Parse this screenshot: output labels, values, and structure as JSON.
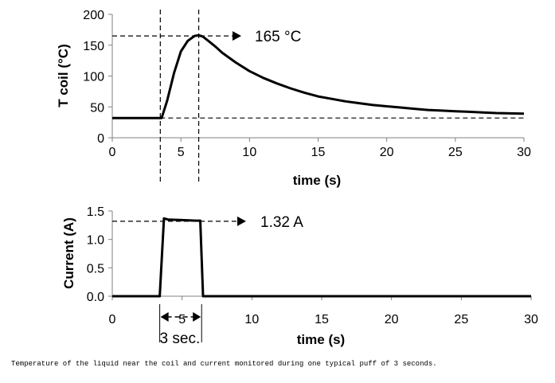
{
  "caption": "Temperature of the liquid near the coil and current monitored during one typical puff of 3 seconds.",
  "chart_data": [
    {
      "type": "line",
      "xlabel": "time (s)",
      "ylabel": "T coil (°C)",
      "xlim": [
        0,
        30
      ],
      "ylim": [
        0,
        200
      ],
      "xticks": [
        "0",
        "5",
        "10",
        "15",
        "20",
        "25",
        "30"
      ],
      "yticks": [
        "0",
        "50",
        "100",
        "150",
        "200"
      ],
      "grid": false,
      "series": [
        {
          "x": [
            0,
            3.6,
            4.0,
            4.5,
            5.0,
            5.5,
            6.0,
            6.3,
            6.6,
            7.0,
            7.5,
            8.0,
            9.0,
            10.0,
            11.0,
            12.0,
            13.0,
            14.0,
            15.0,
            16.0,
            17.0,
            18.0,
            19.0,
            20.0,
            21.0,
            22.0,
            23.0,
            24.0,
            25.0,
            26.0,
            27.0,
            28.0,
            29.0,
            30.0
          ],
          "y": [
            32,
            32,
            60,
            105,
            140,
            157,
            165,
            166,
            164,
            157,
            148,
            138,
            122,
            108,
            97,
            88,
            80,
            73,
            67,
            63,
            59,
            56,
            53,
            51,
            49,
            47,
            45,
            44,
            43,
            42,
            41,
            40,
            39.5,
            39
          ]
        }
      ],
      "annotations": {
        "peak_label": "165 °C",
        "peak_value": 165,
        "baseline_value": 32,
        "vline_x": [
          3.5,
          6.3
        ]
      }
    },
    {
      "type": "line",
      "xlabel": "time (s)",
      "ylabel": "Current (A)",
      "xlim": [
        0,
        30
      ],
      "ylim": [
        0,
        1.5
      ],
      "xticks": [
        "0",
        "5",
        "10",
        "15",
        "20",
        "25",
        "30"
      ],
      "yticks": [
        "0.0",
        "0.5",
        "1.0",
        "1.5"
      ],
      "grid": false,
      "series": [
        {
          "x": [
            0,
            3.4,
            3.7,
            4.0,
            5.0,
            6.0,
            6.3,
            6.5,
            30
          ],
          "y": [
            0,
            0,
            1.37,
            1.35,
            1.34,
            1.33,
            1.33,
            0,
            0
          ]
        }
      ],
      "annotations": {
        "peak_label": "1.32 A",
        "peak_value": 1.32,
        "duration_label": "3 sec.",
        "duration_start": 3.4,
        "duration_end": 6.4
      }
    }
  ]
}
